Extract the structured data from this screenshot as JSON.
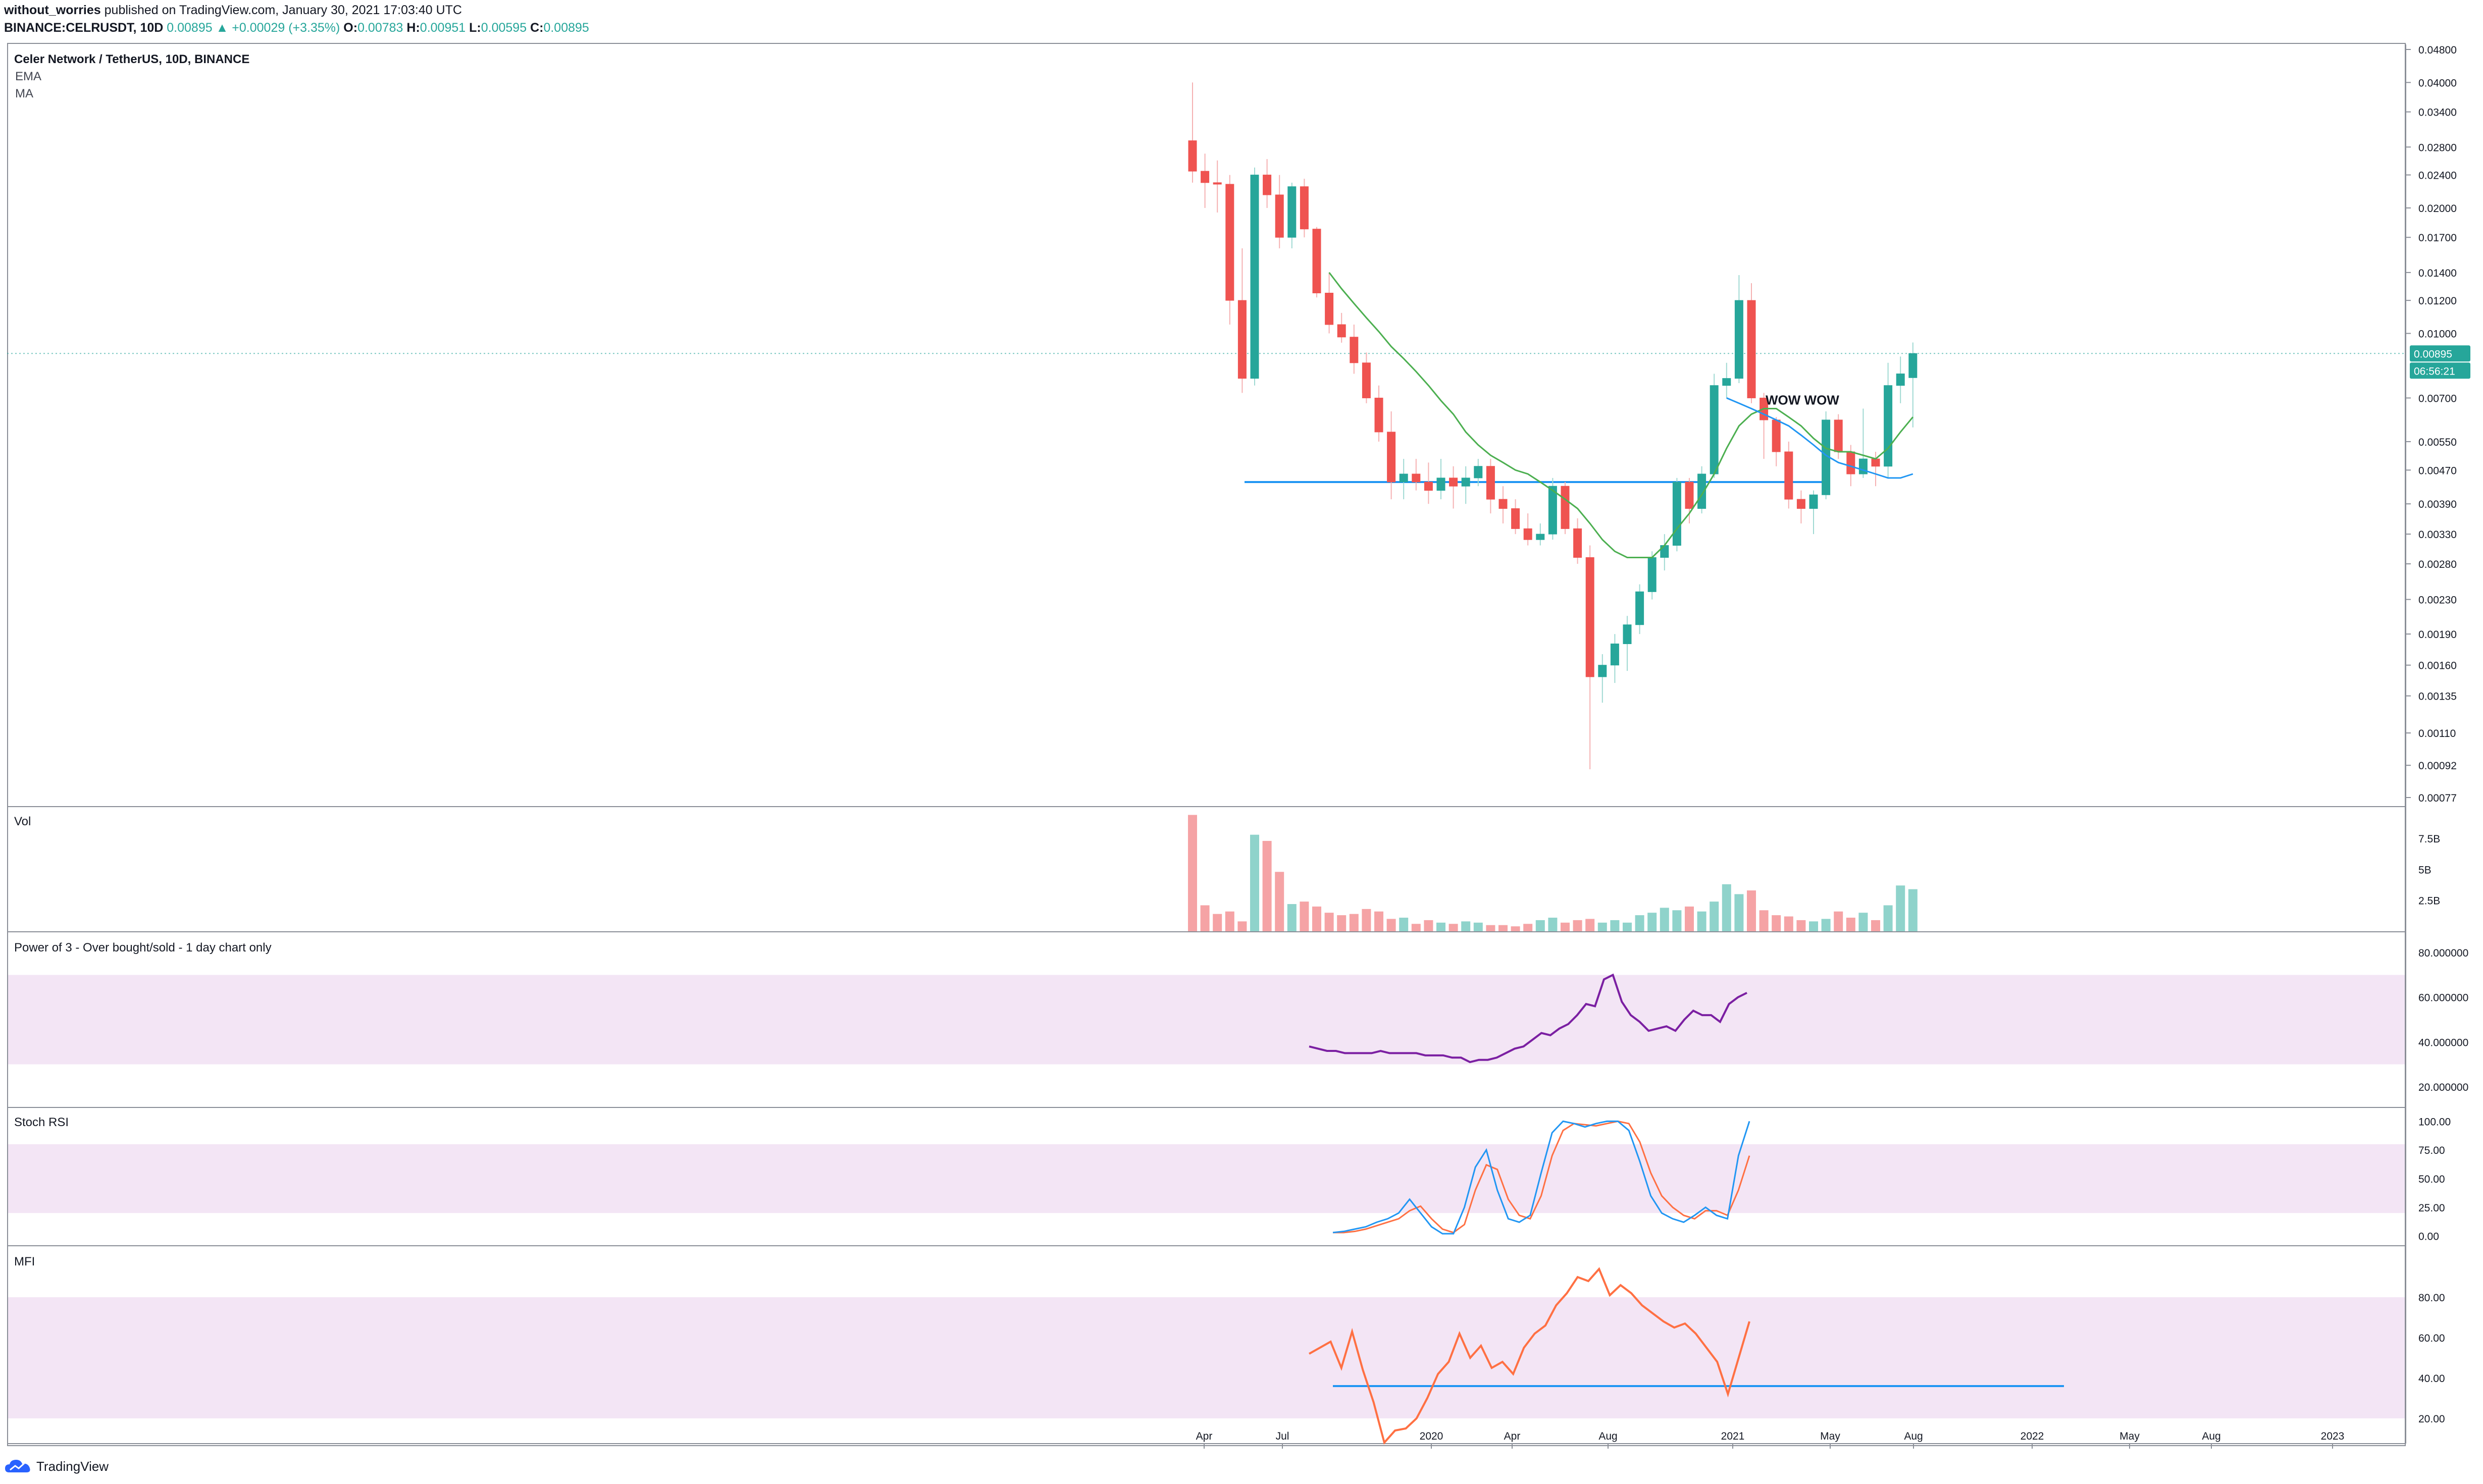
{
  "header": {
    "author": "without_worries",
    "published": "published on TradingView.com, January 30, 2021 17:03:40 UTC",
    "symbol": "BINANCE:CELRUSDT, 10D",
    "price": "0.00895",
    "change": "▲ +0.00029 (+3.35%)",
    "o_label": "O:",
    "o_value": "0.00783",
    "h_label": "H:",
    "h_value": "0.00951",
    "l_label": "L:",
    "l_value": "0.00595",
    "c_label": "C:",
    "c_value": "0.00895"
  },
  "main_pane": {
    "title": "Celer Network / TetherUS, 10D, BINANCE",
    "indicators": [
      "EMA",
      "MA"
    ],
    "annotation": "WOW WOW",
    "price_tag": "0.00895",
    "countdown_tag": "06:56:21"
  },
  "pane_titles": {
    "volume": "Vol",
    "power3": "Power of 3 - Over bought/sold - 1 day chart only",
    "stoch": "Stoch RSI",
    "mfi": "MFI"
  },
  "brand": "TradingView",
  "colors": {
    "bull": "#26a69a",
    "bear": "#ef5350",
    "bull_vol": "#8fd3cb",
    "bear_vol": "#f5a3a5",
    "ema": "#4caf50",
    "ma": "#2196f3",
    "hline": "#2196f3",
    "power3": "#7b1fa2",
    "stoch_k": "#2196f3",
    "stoch_d": "#ff7043",
    "mfi": "#ff7043",
    "band": "#f3e5f5"
  },
  "chart_data": [
    {
      "type": "candlestick",
      "title": "Celer Network / TetherUS, 10D, BINANCE",
      "yscale": "log",
      "ylim": [
        0.00077,
        0.048
      ],
      "yticks": [
        "0.04800",
        "0.04000",
        "0.03400",
        "0.02800",
        "0.02400",
        "0.02000",
        "0.01700",
        "0.01400",
        "0.01200",
        "0.01000",
        "0.00895",
        "0.00700",
        "0.00550",
        "0.00470",
        "0.00390",
        "0.00330",
        "0.00280",
        "0.00230",
        "0.00190",
        "0.00160",
        "0.00135",
        "0.00110",
        "0.00092",
        "0.00077"
      ],
      "xticks": [
        "Apr",
        "Jul",
        "2020",
        "Apr",
        "Aug",
        "2021",
        "May",
        "Aug",
        "2022",
        "May",
        "Aug",
        "2023"
      ],
      "candles": [
        [
          0.029,
          0.04,
          0.023,
          0.0245
        ],
        [
          0.0245,
          0.027,
          0.02,
          0.023
        ],
        [
          0.023,
          0.026,
          0.0195,
          0.0228
        ],
        [
          0.0228,
          0.024,
          0.0105,
          0.012
        ],
        [
          0.012,
          0.016,
          0.0072,
          0.0078
        ],
        [
          0.0078,
          0.025,
          0.0075,
          0.024
        ],
        [
          0.024,
          0.0262,
          0.02,
          0.0215
        ],
        [
          0.0215,
          0.024,
          0.016,
          0.017
        ],
        [
          0.017,
          0.023,
          0.016,
          0.0225
        ],
        [
          0.0225,
          0.0235,
          0.017,
          0.0178
        ],
        [
          0.0178,
          0.018,
          0.0122,
          0.0125
        ],
        [
          0.0125,
          0.014,
          0.01,
          0.0105
        ],
        [
          0.0105,
          0.0112,
          0.0095,
          0.0098
        ],
        [
          0.0098,
          0.0105,
          0.008,
          0.0085
        ],
        [
          0.0085,
          0.009,
          0.0068,
          0.007
        ],
        [
          0.007,
          0.0075,
          0.0055,
          0.0058
        ],
        [
          0.0058,
          0.0065,
          0.004,
          0.0044
        ],
        [
          0.0044,
          0.005,
          0.004,
          0.0046
        ],
        [
          0.0046,
          0.005,
          0.0042,
          0.0044
        ],
        [
          0.0044,
          0.0049,
          0.0039,
          0.0042
        ],
        [
          0.0042,
          0.005,
          0.004,
          0.0045
        ],
        [
          0.0045,
          0.0048,
          0.0038,
          0.0043
        ],
        [
          0.0043,
          0.0048,
          0.0039,
          0.0045
        ],
        [
          0.0045,
          0.005,
          0.0043,
          0.0048
        ],
        [
          0.0048,
          0.005,
          0.0037,
          0.004
        ],
        [
          0.004,
          0.0043,
          0.0035,
          0.0038
        ],
        [
          0.0038,
          0.004,
          0.0033,
          0.0034
        ],
        [
          0.0034,
          0.0037,
          0.0031,
          0.0032
        ],
        [
          0.0032,
          0.0035,
          0.0031,
          0.0033
        ],
        [
          0.0033,
          0.0045,
          0.0032,
          0.0043
        ],
        [
          0.0043,
          0.0044,
          0.0033,
          0.0034
        ],
        [
          0.0034,
          0.0036,
          0.0028,
          0.0029
        ],
        [
          0.0029,
          0.0031,
          0.0009,
          0.0015
        ],
        [
          0.0015,
          0.0017,
          0.0013,
          0.0016
        ],
        [
          0.0016,
          0.0019,
          0.00145,
          0.0018
        ],
        [
          0.0018,
          0.0021,
          0.00155,
          0.002
        ],
        [
          0.002,
          0.0025,
          0.0019,
          0.0024
        ],
        [
          0.0024,
          0.003,
          0.0023,
          0.0029
        ],
        [
          0.0029,
          0.0033,
          0.0027,
          0.0031
        ],
        [
          0.0031,
          0.0045,
          0.003,
          0.0044
        ],
        [
          0.0044,
          0.0045,
          0.0035,
          0.0038
        ],
        [
          0.0038,
          0.0048,
          0.0037,
          0.0046
        ],
        [
          0.0046,
          0.008,
          0.0045,
          0.0075
        ],
        [
          0.0075,
          0.0085,
          0.007,
          0.0078
        ],
        [
          0.0078,
          0.0138,
          0.0076,
          0.012
        ],
        [
          0.012,
          0.0132,
          0.0068,
          0.007
        ],
        [
          0.007,
          0.0072,
          0.005,
          0.0062
        ],
        [
          0.0062,
          0.0063,
          0.0048,
          0.0052
        ],
        [
          0.0052,
          0.0055,
          0.0038,
          0.004
        ],
        [
          0.004,
          0.0042,
          0.0035,
          0.0038
        ],
        [
          0.0038,
          0.0042,
          0.0033,
          0.0041
        ],
        [
          0.0041,
          0.0065,
          0.004,
          0.0062
        ],
        [
          0.0062,
          0.0064,
          0.005,
          0.0052
        ],
        [
          0.0052,
          0.0054,
          0.0043,
          0.0046
        ],
        [
          0.0046,
          0.0066,
          0.0045,
          0.005
        ],
        [
          0.005,
          0.0052,
          0.0043,
          0.0048
        ],
        [
          0.0048,
          0.0085,
          0.0045,
          0.0075
        ],
        [
          0.0075,
          0.0088,
          0.0068,
          0.008
        ],
        [
          0.00783,
          0.00951,
          0.00595,
          0.00895
        ]
      ],
      "ema": [
        0.014,
        0.0128,
        0.0118,
        0.0109,
        0.0101,
        0.0093,
        0.0087,
        0.0081,
        0.0075,
        0.0069,
        0.0064,
        0.0058,
        0.0054,
        0.0051,
        0.0049,
        0.0047,
        0.0046,
        0.0044,
        0.0042,
        0.004,
        0.0038,
        0.0035,
        0.0032,
        0.003,
        0.0029,
        0.0029,
        0.0029,
        0.0031,
        0.0034,
        0.0037,
        0.0041,
        0.0046,
        0.0053,
        0.006,
        0.0064,
        0.0066,
        0.0066,
        0.0063,
        0.006,
        0.0056,
        0.0053,
        0.0052,
        0.0052,
        0.0051,
        0.005,
        0.0053,
        0.0058,
        0.0063
      ],
      "ma": [
        0.007,
        0.0068,
        0.0066,
        0.0064,
        0.0062,
        0.006,
        0.0057,
        0.0054,
        0.0051,
        0.0049,
        0.0048,
        0.0047,
        0.0046,
        0.0045,
        0.0045,
        0.0046
      ],
      "hline": 0.0044
    },
    {
      "type": "bar",
      "title": "Vol",
      "yticks": [
        "7.5B",
        "5B",
        "2.5B"
      ],
      "ylim": [
        0,
        9.5
      ],
      "values": [
        9.4,
        2.1,
        1.4,
        1.6,
        0.8,
        7.8,
        7.3,
        4.8,
        2.2,
        2.4,
        2.0,
        1.5,
        1.3,
        1.4,
        1.8,
        1.6,
        1.0,
        1.1,
        0.6,
        0.9,
        0.7,
        0.6,
        0.8,
        0.7,
        0.5,
        0.5,
        0.4,
        0.6,
        0.9,
        1.1,
        0.7,
        0.9,
        1.0,
        0.7,
        0.9,
        0.7,
        1.3,
        1.5,
        1.9,
        1.7,
        2.0,
        1.6,
        2.4,
        3.8,
        3.0,
        3.3,
        1.7,
        1.3,
        1.2,
        0.9,
        0.8,
        1.0,
        1.6,
        1.1,
        1.5,
        0.9,
        2.1,
        3.7,
        3.4
      ]
    },
    {
      "type": "line",
      "title": "Power of 3 - Over bought/sold - 1 day chart only",
      "yticks": [
        "80.000000",
        "60.000000",
        "40.000000",
        "20.000000"
      ],
      "ylim": [
        15,
        85
      ],
      "band": [
        30,
        70
      ],
      "values": [
        38,
        37,
        36,
        36,
        35,
        35,
        35,
        35,
        36,
        35,
        35,
        35,
        35,
        34,
        34,
        34,
        33,
        33,
        31,
        32,
        32,
        33,
        35,
        37,
        38,
        41,
        44,
        43,
        46,
        48,
        52,
        57,
        56,
        68,
        70,
        58,
        52,
        49,
        45,
        46,
        47,
        45,
        50,
        54,
        52,
        52,
        49,
        57,
        60,
        62
      ]
    },
    {
      "type": "line",
      "title": "Stoch RSI",
      "yticks": [
        "100.00",
        "75.00",
        "50.00",
        "25.00",
        "0.00"
      ],
      "ylim": [
        -5,
        105
      ],
      "band": [
        20,
        80
      ],
      "series": [
        {
          "values": [
            3,
            4,
            6,
            8,
            12,
            15,
            20,
            32,
            20,
            8,
            2,
            2,
            25,
            60,
            75,
            40,
            15,
            12,
            18,
            55,
            90,
            100,
            98,
            95,
            98,
            100,
            100,
            92,
            65,
            35,
            20,
            15,
            12,
            18,
            25,
            18,
            15,
            70,
            100
          ]
        },
        {
          "values": [
            3,
            3,
            4,
            6,
            9,
            12,
            15,
            22,
            26,
            15,
            6,
            3,
            10,
            40,
            62,
            58,
            32,
            18,
            15,
            35,
            70,
            92,
            98,
            97,
            96,
            98,
            100,
            98,
            82,
            55,
            35,
            25,
            18,
            15,
            22,
            22,
            18,
            40,
            70
          ]
        }
      ]
    },
    {
      "type": "line",
      "title": "MFI",
      "yticks": [
        "80.00",
        "60.00",
        "40.00",
        "20.00"
      ],
      "ylim": [
        10,
        100
      ],
      "band": [
        20,
        80
      ],
      "values": [
        52,
        55,
        58,
        45,
        63,
        44,
        28,
        8,
        14,
        15,
        20,
        30,
        42,
        48,
        62,
        50,
        56,
        45,
        48,
        42,
        55,
        62,
        66,
        76,
        82,
        90,
        88,
        94,
        81,
        86,
        82,
        76,
        72,
        68,
        65,
        67,
        62,
        55,
        48,
        32,
        50,
        68
      ],
      "hline": 36
    }
  ]
}
